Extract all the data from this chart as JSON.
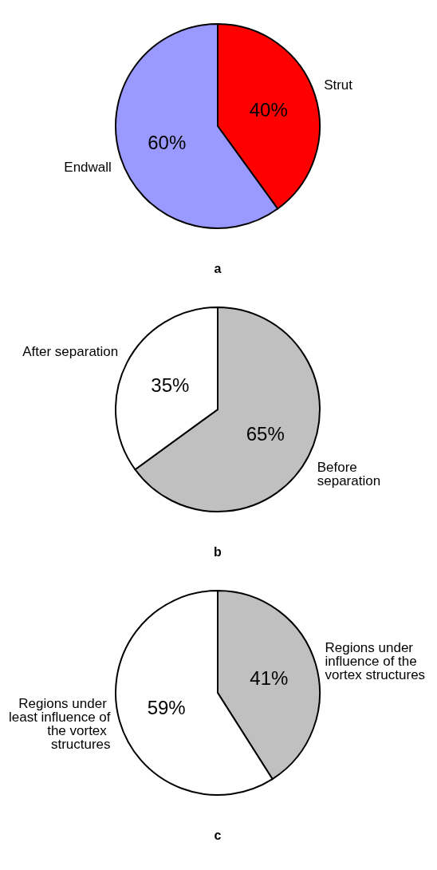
{
  "chart_data": [
    {
      "type": "pie",
      "title": "a",
      "categories": [
        "Strut",
        "Endwall"
      ],
      "values": [
        40,
        60
      ],
      "colors": [
        "#ff0000",
        "#9999ff"
      ],
      "value_labels": [
        "40%",
        "60%"
      ]
    },
    {
      "type": "pie",
      "title": "b",
      "categories": [
        "Before separation",
        "After separation"
      ],
      "values": [
        65,
        35
      ],
      "colors": [
        "#c0c0c0",
        "#ffffff"
      ],
      "value_labels": [
        "65%",
        "35%"
      ]
    },
    {
      "type": "pie",
      "title": "c",
      "categories": [
        "Regions under influence of the vortex structures",
        "Regions under least influence of the vortex structures"
      ],
      "values": [
        41,
        59
      ],
      "colors": [
        "#c0c0c0",
        "#ffffff"
      ],
      "value_labels": [
        "41%",
        "59%"
      ]
    }
  ]
}
